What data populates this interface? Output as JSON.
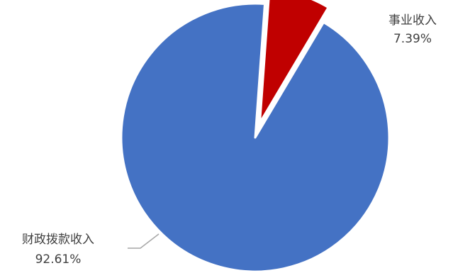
{
  "chart_data": {
    "type": "pie",
    "title": "",
    "slices": [
      {
        "name": "财政拨款收入",
        "value": 92.61,
        "label": "92.61%",
        "color": "#4472C4",
        "exploded": false
      },
      {
        "name": "事业收入",
        "value": 7.39,
        "label": "7.39%",
        "color": "#C00000",
        "exploded": true
      }
    ],
    "start_angle": "top-right, clockwise",
    "legend": "none",
    "data_labels": "outside with leader line"
  }
}
